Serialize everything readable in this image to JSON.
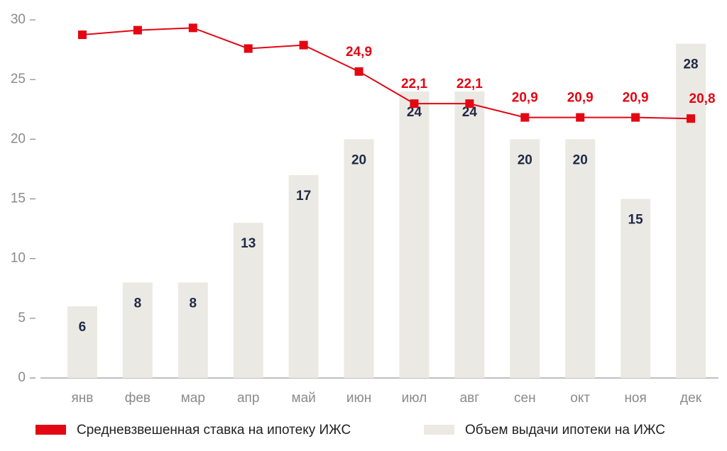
{
  "chart_data": {
    "type": "bar_line",
    "categories": [
      "янв",
      "фев",
      "мар",
      "апр",
      "май",
      "июн",
      "июл",
      "авг",
      "сен",
      "окт",
      "ноя",
      "дек"
    ],
    "ylim": [
      0,
      30
    ],
    "yticks": [
      0,
      5,
      10,
      15,
      20,
      25,
      30
    ],
    "y2lim": [
      -1.8,
      29.4
    ],
    "series": [
      {
        "name": "Объем выдачи ипотеки на ИЖС",
        "type": "bar",
        "color": "#ebe9e4",
        "values": [
          6,
          8,
          8,
          13,
          17,
          20,
          24,
          24,
          20,
          20,
          15,
          28
        ]
      },
      {
        "name": "Средневзвешенная ставка на ипотеку ИЖС",
        "type": "line",
        "axis": "y2",
        "color": "#e30613",
        "values": [
          28.1,
          28.5,
          28.7,
          26.9,
          27.2,
          24.9,
          22.1,
          22.1,
          20.9,
          20.9,
          20.9,
          20.8
        ],
        "value_labels": [
          null,
          null,
          null,
          null,
          null,
          "24,9",
          "22,1",
          "22,1",
          "20,9",
          "20,9",
          "20,9",
          "20,8"
        ]
      }
    ]
  }
}
